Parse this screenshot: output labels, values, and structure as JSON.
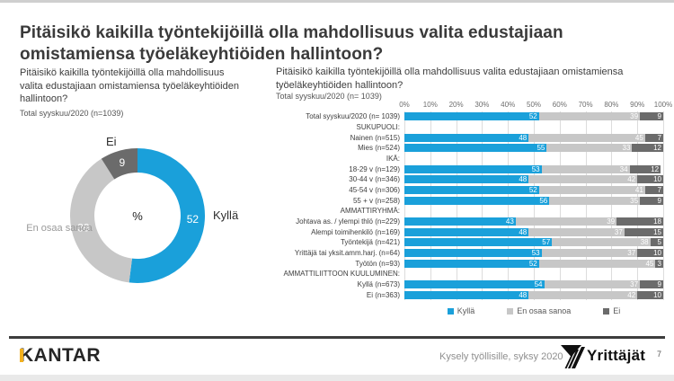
{
  "title": {
    "line1": "Pitäisikö kaikilla työntekijöillä olla mahdollisuus valita edustajiaan",
    "line2": "omistamiensa työeläkeyhtiöiden hallintoon?"
  },
  "colors": {
    "yes": "#1aa0da",
    "dontknow": "#c7c7c7",
    "no": "#6b6b6b",
    "kantar_yellow": "#f2b01e"
  },
  "left_panel": {
    "subtitle": "Pitäisikö kaikilla työntekijöillä olla mahdollisuus valita edustajiaan omistamiensa työeläkeyhtiöiden hallintoon?",
    "sample": "Total syyskuu/2020 (n=1039)",
    "donut": {
      "center_label": "%",
      "segments": [
        {
          "label": "Kyllä",
          "value": 52,
          "color": "#1aa0da"
        },
        {
          "label": "En osaa sanoa",
          "value": 39,
          "color": "#c7c7c7"
        },
        {
          "label": "Ei",
          "value": 9,
          "color": "#6b6b6b"
        }
      ],
      "label_ei": "Ei",
      "label_kylla": "Kyllä",
      "label_eos": "En osaa sanoa"
    }
  },
  "right_panel": {
    "subtitle": "Pitäisikö kaikilla työntekijöillä olla mahdollisuus valita edustajiaan omistamiensa työeläkeyhtiöiden hallintoon?",
    "sample": "Total syyskuu/2020 (n= 1039)",
    "axis_ticks": [
      "0%",
      "10%",
      "20%",
      "30%",
      "40%",
      "50%",
      "60%",
      "70%",
      "80%",
      "90%",
      "100%"
    ],
    "rows": [
      {
        "label": "Total syyskuu/2020 (n= 1039)",
        "values": [
          52,
          39,
          9
        ]
      },
      {
        "label": "SUKUPUOLI:",
        "header": true
      },
      {
        "label": "Nainen (n=515)",
        "values": [
          48,
          45,
          7
        ]
      },
      {
        "label": "Mies (n=524)",
        "values": [
          55,
          33,
          12
        ]
      },
      {
        "label": "IKÄ:",
        "header": true
      },
      {
        "label": "18-29 v (n=129)",
        "values": [
          53,
          34,
          12
        ]
      },
      {
        "label": "30-44 v (n=346)",
        "values": [
          48,
          42,
          10
        ]
      },
      {
        "label": "45-54 v (n=306)",
        "values": [
          52,
          41,
          7
        ]
      },
      {
        "label": "55 + v (n=258)",
        "values": [
          56,
          35,
          9
        ]
      },
      {
        "label": "AMMATTIRYHMÄ:",
        "header": true
      },
      {
        "label": "Johtava as. / ylempi thlö (n=229)",
        "values": [
          43,
          39,
          18
        ]
      },
      {
        "label": "Alempi toimihenkilö (n=169)",
        "values": [
          48,
          37,
          15
        ]
      },
      {
        "label": "Työntekijä (n=421)",
        "values": [
          57,
          38,
          5
        ]
      },
      {
        "label": "Yrittäjä tai yksit.amm.harj. (n=64)",
        "values": [
          53,
          37,
          10
        ]
      },
      {
        "label": "Työtön (n=93)",
        "values": [
          52,
          45,
          3
        ]
      },
      {
        "label": "AMMATTILIITTOON KUULUMINEN:",
        "header": true
      },
      {
        "label": "Kyllä (n=673)",
        "values": [
          54,
          37,
          9
        ]
      },
      {
        "label": "Ei (n=363)",
        "values": [
          48,
          42,
          10
        ]
      }
    ],
    "legend": [
      {
        "label": "Kyllä",
        "color": "#1aa0da"
      },
      {
        "label": "En osaa sanoa",
        "color": "#c7c7c7"
      },
      {
        "label": "Ei",
        "color": "#6b6b6b"
      }
    ]
  },
  "footer": {
    "kantar": "KANTAR",
    "note": "Kysely työllisille, syksy 2020",
    "yrittajat": "Yrittäjät",
    "page_number": "7"
  },
  "chart_data": [
    {
      "type": "pie",
      "title": "Pitäisikö kaikilla työntekijöillä olla mahdollisuus valita edustajiaan omistamiensa työeläkeyhtiöiden hallintoon? — Total syyskuu/2020 (n=1039)",
      "labels": [
        "Kyllä",
        "En osaa sanoa",
        "Ei"
      ],
      "values": [
        52,
        39,
        9
      ],
      "unit": "%",
      "donut": true,
      "colors": [
        "#1aa0da",
        "#c7c7c7",
        "#6b6b6b"
      ]
    },
    {
      "type": "bar",
      "stacked": true,
      "orientation": "horizontal",
      "title": "Pitäisikö kaikilla työntekijöillä olla mahdollisuus valita edustajiaan omistamiensa työeläkeyhtiöiden hallintoon? — Total syyskuu/2020 (n= 1039)",
      "categories": [
        "Total syyskuu/2020 (n= 1039)",
        "Nainen (n=515)",
        "Mies (n=524)",
        "18-29 v (n=129)",
        "30-44 v (n=346)",
        "45-54 v (n=306)",
        "55 + v (n=258)",
        "Johtava as. / ylempi thlö (n=229)",
        "Alempi toimihenkilö (n=169)",
        "Työntekijä (n=421)",
        "Yrittäjä tai yksit.amm.harj. (n=64)",
        "Työtön (n=93)",
        "Kyllä (n=673)",
        "Ei (n=363)"
      ],
      "groups": [
        "SUKUPUOLI:",
        "IKÄ:",
        "AMMATTIRYHMÄ:",
        "AMMATTILIITTOON KUULUMINEN:"
      ],
      "series": [
        {
          "name": "Kyllä",
          "values": [
            52,
            48,
            55,
            53,
            48,
            52,
            56,
            43,
            48,
            57,
            53,
            52,
            54,
            48
          ]
        },
        {
          "name": "En osaa sanoa",
          "values": [
            39,
            45,
            33,
            34,
            42,
            41,
            35,
            39,
            37,
            38,
            37,
            45,
            37,
            42
          ]
        },
        {
          "name": "Ei",
          "values": [
            9,
            7,
            12,
            12,
            10,
            7,
            9,
            18,
            15,
            5,
            10,
            3,
            9,
            10
          ]
        }
      ],
      "xlim": [
        0,
        100
      ],
      "x_ticks_percent": [
        0,
        10,
        20,
        30,
        40,
        50,
        60,
        70,
        80,
        90,
        100
      ],
      "legend_position": "bottom",
      "grid": true,
      "unit": "%"
    }
  ]
}
